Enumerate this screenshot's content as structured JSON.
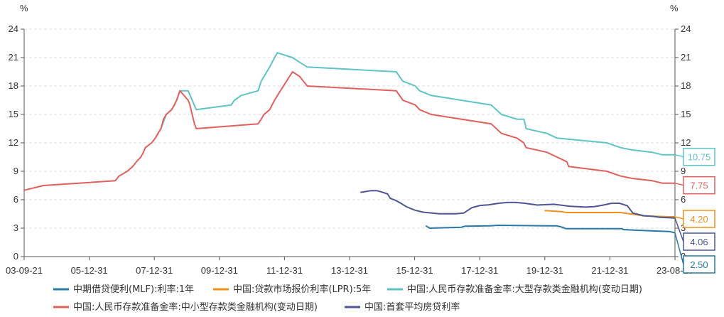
{
  "chart_data": {
    "type": "line",
    "y_unit_left": "%",
    "y_unit_right": "%",
    "ylim": [
      0,
      24
    ],
    "yticks": [
      "0",
      "3",
      "6",
      "9",
      "12",
      "15",
      "18",
      "21",
      "24"
    ],
    "xticks": [
      "03-09-21",
      "05-12-31",
      "07-12-31",
      "09-12-31",
      "11-12-31",
      "13-12-31",
      "15-12-31",
      "17-12-31",
      "19-12-31",
      "21-12-31",
      "23-08-15"
    ],
    "grid": true,
    "legend_position": "bottom",
    "series": [
      {
        "name": "中期借贷便利(MLF):利率:1年",
        "color": "#2a78a8",
        "end_label": "2.50",
        "points": [
          [
            "2016-01-01",
            3.25
          ],
          [
            "2016-02-15",
            3.0
          ],
          [
            "2017-02-01",
            3.1
          ],
          [
            "2017-03-15",
            3.21
          ],
          [
            "2017-12-15",
            3.25
          ],
          [
            "2018-03-15",
            3.3
          ],
          [
            "2019-11-01",
            3.25
          ],
          [
            "2019-12-31",
            3.25
          ],
          [
            "2020-02-15",
            3.15
          ],
          [
            "2020-04-15",
            2.95
          ],
          [
            "2021-12-31",
            2.95
          ],
          [
            "2022-01-15",
            2.85
          ],
          [
            "2022-08-15",
            2.75
          ],
          [
            "2023-06-15",
            2.65
          ],
          [
            "2023-08-15",
            2.5
          ]
        ]
      },
      {
        "name": "中国:贷款市场报价利率(LPR):5年",
        "color": "#f0911f",
        "end_label": "4.20",
        "points": [
          [
            "2019-08-20",
            4.85
          ],
          [
            "2019-11-20",
            4.8
          ],
          [
            "2020-02-20",
            4.75
          ],
          [
            "2020-04-20",
            4.65
          ],
          [
            "2021-12-20",
            4.65
          ],
          [
            "2022-01-20",
            4.6
          ],
          [
            "2022-05-20",
            4.45
          ],
          [
            "2022-08-22",
            4.3
          ],
          [
            "2023-06-20",
            4.2
          ],
          [
            "2023-08-15",
            4.2
          ]
        ]
      },
      {
        "name": "中国:人民币存款准备金率:大型存款类金融机构(变动日期)",
        "color": "#5ec4c6",
        "end_label": "10.75",
        "points": [
          [
            "2007-09-25",
            12.5
          ],
          [
            "2007-11-26",
            13.5
          ],
          [
            "2008-01-25",
            15.0
          ],
          [
            "2008-03-25",
            15.5
          ],
          [
            "2008-05-20",
            16.5
          ],
          [
            "2008-06-25",
            17.5
          ],
          [
            "2008-09-25",
            17.5
          ],
          [
            "2008-12-25",
            15.5
          ],
          [
            "2010-01-18",
            16.0
          ],
          [
            "2010-02-25",
            16.5
          ],
          [
            "2010-05-10",
            17.0
          ],
          [
            "2010-11-16",
            17.5
          ],
          [
            "2010-12-20",
            18.5
          ],
          [
            "2011-01-20",
            19.0
          ],
          [
            "2011-03-25",
            20.0
          ],
          [
            "2011-05-18",
            21.0
          ],
          [
            "2011-06-20",
            21.5
          ],
          [
            "2011-12-05",
            21.0
          ],
          [
            "2012-02-24",
            20.5
          ],
          [
            "2012-05-18",
            20.0
          ],
          [
            "2015-02-05",
            19.5
          ],
          [
            "2015-04-20",
            18.5
          ],
          [
            "2015-09-06",
            18.0
          ],
          [
            "2015-10-24",
            17.5
          ],
          [
            "2016-03-01",
            17.0
          ],
          [
            "2017-12-31",
            16.0
          ],
          [
            "2018-04-25",
            15.0
          ],
          [
            "2018-10-15",
            14.5
          ],
          [
            "2018-12-31",
            14.5
          ],
          [
            "2019-01-15",
            14.0
          ],
          [
            "2019-01-25",
            13.5
          ],
          [
            "2019-09-16",
            13.0
          ],
          [
            "2020-01-06",
            12.5
          ],
          [
            "2021-07-15",
            12.0
          ],
          [
            "2021-12-15",
            11.5
          ],
          [
            "2022-04-25",
            11.25
          ],
          [
            "2022-12-05",
            11.0
          ],
          [
            "2023-03-27",
            10.75
          ],
          [
            "2023-08-15",
            10.75
          ]
        ]
      },
      {
        "name": "中国:人民币存款准备金率:中小型存款类金融机构(变动日期)",
        "color": "#e0605e",
        "end_label": "7.75",
        "points": [
          [
            "2003-09-21",
            7.0
          ],
          [
            "2004-04-25",
            7.5
          ],
          [
            "2006-07-05",
            8.0
          ],
          [
            "2006-08-15",
            8.5
          ],
          [
            "2006-11-15",
            9.0
          ],
          [
            "2007-01-15",
            9.5
          ],
          [
            "2007-02-25",
            10.0
          ],
          [
            "2007-04-16",
            10.5
          ],
          [
            "2007-05-15",
            11.0
          ],
          [
            "2007-06-05",
            11.5
          ],
          [
            "2007-08-15",
            12.0
          ],
          [
            "2007-09-25",
            12.5
          ],
          [
            "2007-10-25",
            13.0
          ],
          [
            "2007-11-26",
            13.5
          ],
          [
            "2007-12-25",
            14.5
          ],
          [
            "2008-01-25",
            15.0
          ],
          [
            "2008-03-25",
            15.5
          ],
          [
            "2008-04-25",
            16.0
          ],
          [
            "2008-05-20",
            16.5
          ],
          [
            "2008-06-25",
            17.5
          ],
          [
            "2008-09-25",
            16.5
          ],
          [
            "2008-10-15",
            16.0
          ],
          [
            "2008-12-05",
            14.0
          ],
          [
            "2008-12-25",
            13.5
          ],
          [
            "2010-11-16",
            14.0
          ],
          [
            "2010-12-20",
            14.5
          ],
          [
            "2011-01-20",
            15.0
          ],
          [
            "2011-03-25",
            15.5
          ],
          [
            "2011-05-18",
            16.5
          ],
          [
            "2011-06-20",
            17.0
          ],
          [
            "2011-12-05",
            19.5
          ],
          [
            "2012-02-24",
            19.0
          ],
          [
            "2012-05-18",
            18.0
          ],
          [
            "2015-02-05",
            17.5
          ],
          [
            "2015-04-20",
            16.5
          ],
          [
            "2015-09-06",
            16.0
          ],
          [
            "2015-10-24",
            15.5
          ],
          [
            "2016-03-01",
            15.0
          ],
          [
            "2017-12-31",
            14.0
          ],
          [
            "2018-04-25",
            13.0
          ],
          [
            "2018-10-15",
            12.5
          ],
          [
            "2018-12-31",
            12.0
          ],
          [
            "2019-01-25",
            11.5
          ],
          [
            "2019-09-16",
            11.0
          ],
          [
            "2020-01-06",
            10.5
          ],
          [
            "2020-04-25",
            10.0
          ],
          [
            "2020-05-15",
            9.5
          ],
          [
            "2021-07-15",
            9.0
          ],
          [
            "2021-12-15",
            8.5
          ],
          [
            "2022-04-25",
            8.25
          ],
          [
            "2022-12-05",
            8.0
          ],
          [
            "2023-03-27",
            7.75
          ],
          [
            "2023-08-15",
            7.75
          ]
        ]
      },
      {
        "name": "中国:首套平均房贷利率",
        "color": "#4d5596",
        "end_label": "4.06",
        "points": [
          [
            "2014-01-01",
            6.78
          ],
          [
            "2014-03-01",
            6.86
          ],
          [
            "2014-05-01",
            6.96
          ],
          [
            "2014-07-01",
            6.96
          ],
          [
            "2014-09-01",
            6.8
          ],
          [
            "2014-11-01",
            6.6
          ],
          [
            "2014-12-01",
            6.14
          ],
          [
            "2015-02-01",
            5.92
          ],
          [
            "2015-04-01",
            5.6
          ],
          [
            "2015-06-01",
            5.25
          ],
          [
            "2015-09-01",
            4.9
          ],
          [
            "2015-12-01",
            4.69
          ],
          [
            "2016-06-01",
            4.52
          ],
          [
            "2016-12-01",
            4.52
          ],
          [
            "2017-03-01",
            4.6
          ],
          [
            "2017-06-01",
            5.17
          ],
          [
            "2017-09-01",
            5.4
          ],
          [
            "2017-12-01",
            5.46
          ],
          [
            "2018-04-01",
            5.63
          ],
          [
            "2018-07-01",
            5.71
          ],
          [
            "2018-10-01",
            5.71
          ],
          [
            "2019-01-01",
            5.63
          ],
          [
            "2019-06-01",
            5.44
          ],
          [
            "2019-12-01",
            5.52
          ],
          [
            "2020-06-01",
            5.3
          ],
          [
            "2020-12-01",
            5.22
          ],
          [
            "2021-03-01",
            5.28
          ],
          [
            "2021-06-01",
            5.43
          ],
          [
            "2021-09-01",
            5.62
          ],
          [
            "2021-12-01",
            5.63
          ],
          [
            "2022-03-01",
            5.36
          ],
          [
            "2022-05-01",
            4.6
          ],
          [
            "2022-09-01",
            4.31
          ],
          [
            "2022-12-01",
            4.26
          ],
          [
            "2023-03-01",
            4.14
          ],
          [
            "2023-06-01",
            4.1
          ],
          [
            "2023-08-15",
            4.06
          ]
        ]
      }
    ]
  }
}
